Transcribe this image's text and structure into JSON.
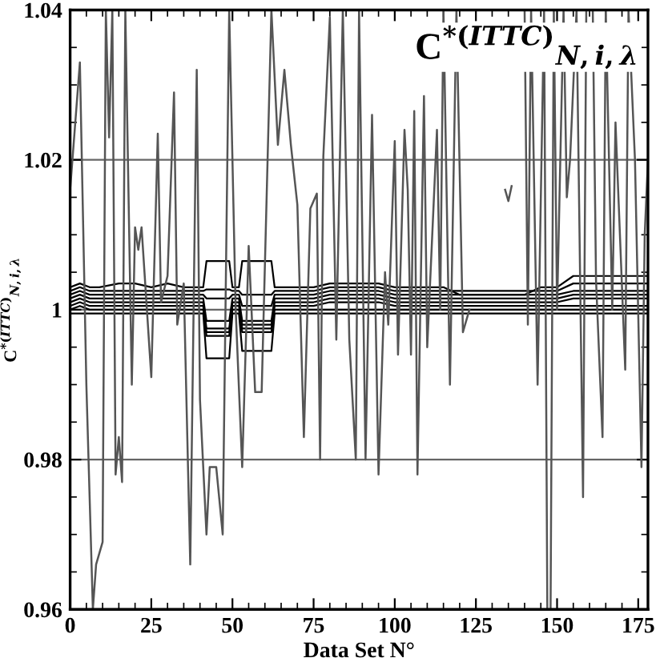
{
  "chart_data": {
    "type": "line",
    "title": "C$^{*(ITTC)}$$_{N,i,λ}$",
    "xlabel": "Data Set N°",
    "ylabel": "C$^{*(ITTC)}$$_{N,i,λ}$",
    "xlim": [
      0,
      178
    ],
    "ylim": [
      0.96,
      1.04
    ],
    "xticks": [
      0,
      25,
      50,
      75,
      100,
      125,
      150,
      175
    ],
    "yticks": [
      0.96,
      0.98,
      1,
      1.02,
      1.04
    ],
    "grid": "y",
    "marker": "none",
    "line_style": "solid",
    "series": [
      {
        "color": "#000000",
        "x": [
          0,
          3,
          6,
          9,
          15,
          20,
          25,
          30,
          35,
          40,
          41,
          42,
          49,
          50,
          52,
          53,
          62,
          63,
          70,
          75,
          80,
          85,
          90,
          95,
          100,
          105,
          110,
          115,
          120,
          125,
          130,
          135,
          140,
          145,
          150,
          155,
          160,
          165,
          170,
          175,
          178
        ],
        "values": [
          0.9995,
          0.9995,
          0.9995,
          0.9995,
          0.9995,
          0.9995,
          0.9995,
          0.9995,
          0.9995,
          0.9995,
          0.9995,
          0.9935,
          0.9935,
          0.9995,
          0.9995,
          0.9945,
          0.9945,
          0.9995,
          0.9995,
          0.9995,
          0.9995,
          0.9995,
          0.9995,
          0.9995,
          0.9995,
          0.9995,
          0.9995,
          0.9995,
          0.9995,
          0.9995,
          0.9995,
          0.9995,
          0.9995,
          0.9995,
          0.9995,
          0.9995,
          0.9995,
          0.9995,
          0.9995,
          0.9995,
          0.9995
        ]
      },
      {
        "color": "#000000",
        "x": [
          0,
          3,
          6,
          9,
          15,
          20,
          25,
          30,
          35,
          40,
          41,
          42,
          49,
          50,
          52,
          53,
          62,
          63,
          70,
          75,
          80,
          85,
          90,
          95,
          100,
          105,
          110,
          115,
          120,
          125,
          130,
          135,
          140,
          145,
          150,
          155,
          160,
          165,
          170,
          175,
          178
        ],
        "values": [
          1,
          1.0005,
          1,
          1,
          1,
          1,
          1,
          1,
          1,
          1,
          1,
          0.9965,
          0.9965,
          1,
          1,
          0.997,
          0.997,
          1,
          1,
          1,
          1,
          1,
          1,
          1,
          1,
          1,
          1,
          1,
          1,
          1,
          1,
          1,
          1,
          1,
          1,
          1,
          1,
          1,
          1,
          1,
          1
        ]
      },
      {
        "color": "#000000",
        "x": [
          0,
          3,
          6,
          9,
          15,
          20,
          25,
          30,
          35,
          40,
          41,
          42,
          49,
          50,
          52,
          53,
          62,
          63,
          70,
          75,
          80,
          85,
          90,
          95,
          100,
          105,
          110,
          115,
          120,
          125,
          130,
          135,
          140,
          145,
          150,
          155,
          160,
          165,
          170,
          175,
          178
        ],
        "values": [
          1.0005,
          1.001,
          1.0005,
          1.0005,
          1.0005,
          1.0005,
          1.0005,
          1.0005,
          1.0005,
          1.0005,
          1.0005,
          0.997,
          0.997,
          1.0005,
          1.0005,
          0.9975,
          0.9975,
          1.0005,
          1.0005,
          1.0005,
          1.001,
          1.001,
          1.001,
          1.001,
          1.0005,
          1.0005,
          1.0005,
          1.0005,
          1.0005,
          1.0005,
          1.0005,
          1.0005,
          1.0005,
          1.0005,
          1.0005,
          1.0005,
          1.0005,
          1.0005,
          1.0005,
          1.0005,
          1.0005
        ]
      },
      {
        "color": "#000000",
        "x": [
          0,
          3,
          6,
          9,
          15,
          20,
          25,
          30,
          35,
          40,
          41,
          42,
          49,
          50,
          52,
          53,
          62,
          63,
          70,
          75,
          80,
          85,
          90,
          95,
          100,
          105,
          110,
          115,
          120,
          125,
          130,
          135,
          140,
          145,
          150,
          155,
          160,
          165,
          170,
          175,
          178
        ],
        "values": [
          1.001,
          1.0015,
          1.001,
          1.001,
          1.001,
          1.001,
          1.001,
          1.001,
          1.001,
          1.001,
          1.001,
          0.9975,
          0.9975,
          1.001,
          1.001,
          0.998,
          0.998,
          1.001,
          1.001,
          1.001,
          1.0015,
          1.0015,
          1.0015,
          1.0015,
          1.001,
          1.001,
          1.001,
          1.001,
          1.001,
          1.001,
          1.001,
          1.001,
          1.001,
          1.001,
          1.001,
          1.0015,
          1.0015,
          1.0015,
          1.0015,
          1.0015,
          1.0015
        ]
      },
      {
        "color": "#000000",
        "x": [
          0,
          3,
          6,
          9,
          15,
          20,
          25,
          30,
          35,
          40,
          41,
          42,
          49,
          50,
          52,
          53,
          62,
          63,
          70,
          75,
          80,
          85,
          90,
          95,
          100,
          105,
          110,
          115,
          120,
          125,
          130,
          135,
          140,
          145,
          150,
          155,
          160,
          165,
          170,
          175,
          178
        ],
        "values": [
          1.0015,
          1.002,
          1.0015,
          1.0015,
          1.0015,
          1.0015,
          1.0015,
          1.0015,
          1.0015,
          1.0015,
          1.0015,
          0.9985,
          0.9985,
          1.0015,
          1.0015,
          0.9985,
          0.9985,
          1.0015,
          1.0015,
          1.0015,
          1.002,
          1.002,
          1.002,
          1.002,
          1.0015,
          1.0015,
          1.0015,
          1.0015,
          1.0015,
          1.0015,
          1.0015,
          1.0015,
          1.0015,
          1.0015,
          1.0015,
          1.002,
          1.002,
          1.002,
          1.002,
          1.002,
          1.002
        ]
      },
      {
        "color": "#000000",
        "x": [
          0,
          3,
          6,
          9,
          15,
          20,
          25,
          30,
          35,
          40,
          41,
          42,
          49,
          50,
          52,
          53,
          62,
          63,
          70,
          75,
          80,
          85,
          90,
          95,
          100,
          105,
          110,
          115,
          120,
          125,
          130,
          135,
          140,
          145,
          150,
          155,
          160,
          165,
          170,
          175,
          178
        ],
        "values": [
          1.002,
          1.0025,
          1.002,
          1.002,
          1.002,
          1.002,
          1.002,
          1.002,
          1.002,
          1.002,
          1.002,
          1.0015,
          1.0015,
          1.002,
          1.002,
          1.0005,
          1.0005,
          1.002,
          1.002,
          1.002,
          1.0025,
          1.0025,
          1.0025,
          1.0025,
          1.002,
          1.002,
          1.002,
          1.002,
          1.002,
          1.002,
          1.002,
          1.002,
          1.002,
          1.002,
          1.002,
          1.0025,
          1.0025,
          1.0025,
          1.0025,
          1.0025,
          1.0025
        ]
      },
      {
        "color": "#000000",
        "x": [
          0,
          3,
          6,
          9,
          15,
          20,
          25,
          30,
          35,
          40,
          41,
          42,
          49,
          50,
          52,
          53,
          62,
          63,
          70,
          75,
          80,
          85,
          90,
          95,
          100,
          105,
          110,
          115,
          120,
          125,
          130,
          135,
          140,
          145,
          150,
          155,
          160,
          165,
          170,
          175,
          178
        ],
        "values": [
          1.0025,
          1.003,
          1.0025,
          1.0025,
          1.0025,
          1.0025,
          1.0025,
          1.0025,
          1.0025,
          1.0025,
          1.0025,
          1.0027,
          1.0027,
          1.0025,
          1.0025,
          1.002,
          1.002,
          1.0025,
          1.0025,
          1.0025,
          1.003,
          1.003,
          1.003,
          1.003,
          1.0025,
          1.0025,
          1.0025,
          1.0025,
          1.0025,
          1.0025,
          1.0025,
          1.0025,
          1.0025,
          1.0025,
          1.0025,
          1.0035,
          1.0035,
          1.0035,
          1.0035,
          1.0035,
          1.0035
        ]
      },
      {
        "color": "#000000",
        "x": [
          0,
          3,
          6,
          9,
          15,
          20,
          25,
          30,
          35,
          40,
          41,
          42,
          49,
          50,
          52,
          53,
          62,
          63,
          70,
          75,
          80,
          85,
          90,
          95,
          100,
          105,
          110,
          115,
          120,
          125,
          130,
          135,
          140,
          145,
          150,
          155,
          160,
          165,
          170,
          175,
          178
        ],
        "values": [
          1.003,
          1.0035,
          1.003,
          1.003,
          1.0035,
          1.0035,
          1.003,
          1.0035,
          1.003,
          1.003,
          1.003,
          1.0065,
          1.0065,
          1.003,
          1.003,
          1.0065,
          1.0065,
          1.003,
          1.003,
          1.003,
          1.0035,
          1.0035,
          1.0035,
          1.0035,
          1.003,
          1.003,
          1.003,
          1.003,
          1.002,
          1.002,
          1.002,
          1.002,
          1.002,
          1.003,
          1.003,
          1.0045,
          1.0045,
          1.0045,
          1.0045,
          1.0045,
          1.0045
        ]
      },
      {
        "color": "#555555",
        "x": [
          0,
          3,
          5,
          7,
          8,
          10,
          11,
          12,
          13,
          14,
          15,
          16,
          17,
          19,
          20,
          21,
          22,
          25,
          27,
          28,
          30,
          32,
          33,
          35,
          37,
          39,
          40,
          42,
          43,
          45,
          47,
          49,
          51,
          53,
          55,
          57,
          59,
          62,
          64,
          66,
          68,
          70,
          72,
          74,
          76,
          77,
          78,
          80,
          82,
          84,
          86,
          88,
          89,
          91,
          93,
          95,
          97,
          98,
          100,
          101,
          103,
          104,
          105,
          106,
          107,
          109,
          110,
          113,
          114,
          115,
          117,
          119,
          121,
          123,
          128,
          134,
          135,
          136,
          137,
          140,
          141,
          142,
          144,
          146,
          147,
          148,
          149,
          150,
          152,
          153,
          154,
          156,
          158,
          159,
          161,
          162,
          164,
          165,
          167,
          168,
          171,
          172,
          174,
          176,
          177,
          178
        ],
        "values": [
          1.016,
          1.033,
          0.99,
          0.96,
          0.966,
          0.969,
          1.04,
          1.023,
          1.04,
          0.978,
          0.983,
          0.977,
          1.04,
          0.99,
          1.011,
          1.008,
          1.011,
          0.991,
          1.0235,
          1.001,
          1.0045,
          1.029,
          0.998,
          1.0035,
          0.966,
          1.032,
          0.988,
          0.97,
          0.979,
          0.979,
          0.97,
          1.04,
          1.0,
          0.979,
          1.0085,
          0.989,
          0.989,
          1.04,
          1.022,
          1.032,
          1.022,
          1.014,
          0.983,
          1.0135,
          1.0155,
          0.98,
          1.0205,
          1.039,
          0.996,
          1.04,
          0.996,
          0.98,
          1.04,
          0.98,
          1.026,
          0.978,
          1.005,
          0.998,
          1.0225,
          0.994,
          1.024,
          1.016,
          0.994,
          1.0265,
          0.978,
          1.0285,
          0.995,
          1.024,
          1.0,
          1.04,
          0.99,
          1.04,
          0.997,
          1.0,
          null,
          1.016,
          1.0145,
          1.0165,
          null,
          1.04,
          0.998,
          1.04,
          0.99,
          1.04,
          0.96,
          0.96,
          1.04,
          1.0,
          1.04,
          1.015,
          1.02,
          1.04,
          0.975,
          1.04,
          1.04,
          1.004,
          0.983,
          1.04,
          1.0,
          1.025,
          0.992,
          1.04,
          1.02,
          0.979,
          1.01,
          1.02
        ]
      }
    ]
  }
}
